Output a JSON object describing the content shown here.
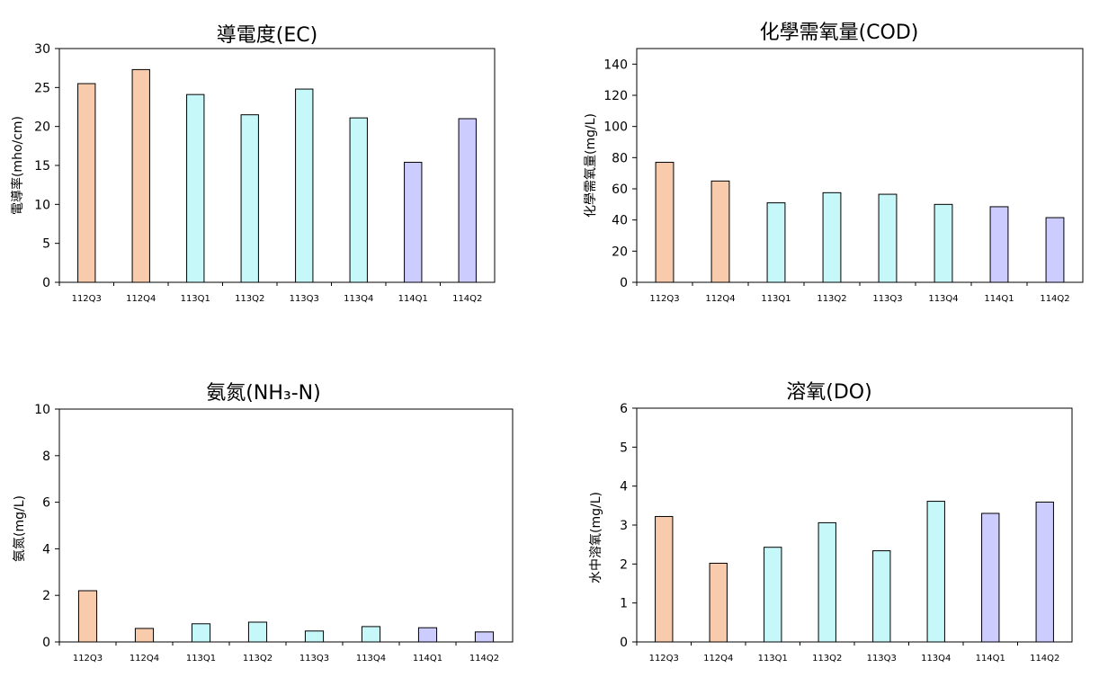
{
  "chart_data": [
    {
      "type": "bar",
      "title": "導電度(EC)",
      "ylabel": "電導率(mho/cm)",
      "xlabel": "",
      "categories": [
        "112Q3",
        "112Q4",
        "113Q1",
        "113Q2",
        "113Q3",
        "113Q4",
        "114Q1",
        "114Q2"
      ],
      "values": [
        25.5,
        27.3,
        24.1,
        21.5,
        24.8,
        21.1,
        15.4,
        21.0
      ],
      "colors": [
        "#f8cbad",
        "#f8cbad",
        "#c6f7f9",
        "#c6f7f9",
        "#c6f7f9",
        "#c6f7f9",
        "#ccccff",
        "#ccccff"
      ],
      "ylim": [
        0,
        30
      ],
      "yticks": [
        0,
        5,
        10,
        15,
        20,
        25,
        30
      ],
      "grid": false
    },
    {
      "type": "bar",
      "title": "化學需氧量(COD)",
      "ylabel": "化學需氧量(mg/L)",
      "xlabel": "",
      "categories": [
        "112Q3",
        "112Q4",
        "113Q1",
        "113Q2",
        "113Q3",
        "113Q4",
        "114Q1",
        "114Q2"
      ],
      "values": [
        77,
        65,
        51,
        57.5,
        56.5,
        50,
        48.5,
        41.5
      ],
      "colors": [
        "#f8cbad",
        "#f8cbad",
        "#c6f7f9",
        "#c6f7f9",
        "#c6f7f9",
        "#c6f7f9",
        "#ccccff",
        "#ccccff"
      ],
      "ylim": [
        0,
        150
      ],
      "yticks": [
        0,
        20,
        40,
        60,
        80,
        100,
        120,
        140
      ],
      "grid": false
    },
    {
      "type": "bar",
      "title": "氨氮(NH₃-N)",
      "ylabel": "氨氮(mg/L)",
      "xlabel": "",
      "categories": [
        "112Q3",
        "112Q4",
        "113Q1",
        "113Q2",
        "113Q3",
        "113Q4",
        "114Q1",
        "114Q2"
      ],
      "values": [
        2.2,
        0.58,
        0.78,
        0.85,
        0.47,
        0.66,
        0.61,
        0.43
      ],
      "colors": [
        "#f8cbad",
        "#f8cbad",
        "#c6f7f9",
        "#c6f7f9",
        "#c6f7f9",
        "#c6f7f9",
        "#ccccff",
        "#ccccff"
      ],
      "ylim": [
        0,
        10
      ],
      "yticks": [
        0,
        2,
        4,
        6,
        8,
        10
      ],
      "grid": false
    },
    {
      "type": "bar",
      "title": "溶氧(DO)",
      "ylabel": "水中溶氧(mg/L)",
      "xlabel": "",
      "categories": [
        "112Q3",
        "112Q4",
        "113Q1",
        "113Q2",
        "113Q3",
        "113Q4",
        "114Q1",
        "114Q2"
      ],
      "values": [
        3.22,
        2.02,
        2.43,
        3.06,
        2.34,
        3.61,
        3.3,
        3.59
      ],
      "colors": [
        "#f8cbad",
        "#f8cbad",
        "#c6f7f9",
        "#c6f7f9",
        "#c6f7f9",
        "#c6f7f9",
        "#ccccff",
        "#ccccff"
      ],
      "ylim": [
        0,
        6
      ],
      "yticks": [
        0,
        1,
        2,
        3,
        4,
        5,
        6
      ],
      "grid": false
    }
  ]
}
